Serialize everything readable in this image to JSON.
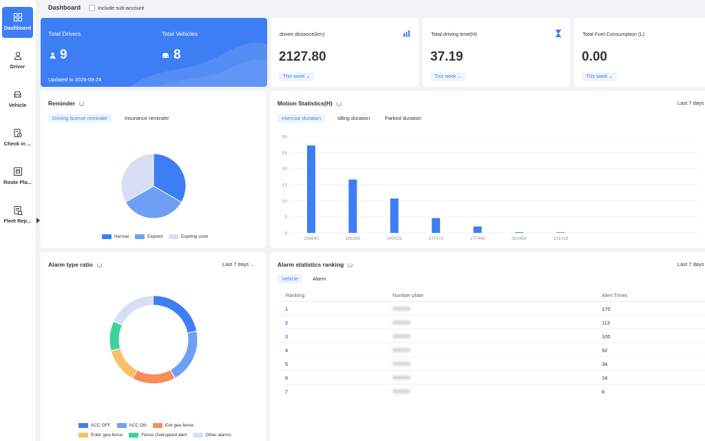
{
  "sidebar": {
    "items": [
      {
        "label": "Dashboard",
        "icon": "dashboard-grid-icon"
      },
      {
        "label": "Driver",
        "icon": "driver-person-icon"
      },
      {
        "label": "Vehicle",
        "icon": "vehicle-car-icon"
      },
      {
        "label": "Check in ...",
        "icon": "check-in-icon"
      },
      {
        "label": "Route Pla...",
        "icon": "route-plan-icon"
      },
      {
        "label": "Fleet Rep...",
        "icon": "fleet-report-icon"
      }
    ]
  },
  "header": {
    "title": "Dashboard",
    "include_sub_account": "Include sub-account"
  },
  "summary": {
    "drivers_label": "Total Drivers",
    "drivers_value": "9",
    "vehicles_label": "Total Vehicles",
    "vehicles_value": "8",
    "updated": "Updated to 2026-09-24"
  },
  "stats": [
    {
      "label": "driven distance(km)",
      "value": "2127.80",
      "period": "This week",
      "icon": "bar-chart-icon"
    },
    {
      "label": "Total driving time(H)",
      "value": "37.19",
      "period": "This week",
      "icon": "hourglass-icon"
    },
    {
      "label": "Total Fuel Consumption (L)",
      "value": "0.00",
      "period": "This week",
      "icon": "fuel-icon"
    }
  ],
  "reminder": {
    "title": "Reminder",
    "tabs": [
      "Driving license reminder",
      "Insurance reminder"
    ],
    "legend": [
      "Normal",
      "Expired",
      "Expiring soon"
    ],
    "slices": [
      {
        "name": "Normal",
        "value": 3,
        "color": "#3d7ef5"
      },
      {
        "name": "Expired",
        "value": 3,
        "color": "#6e9ff5"
      },
      {
        "name": "Expiring soon",
        "value": 3,
        "color": "#d8def3"
      }
    ]
  },
  "motion": {
    "title": "Motion Statistics(H)",
    "range": "Last 7 days",
    "tabs": [
      "exercise duration",
      "Idling duration",
      "Parked duration"
    ]
  },
  "chart_data": {
    "type": "bar",
    "title": "",
    "categories": [
      "256640",
      "185396",
      "245529",
      "277472",
      "277469",
      "303454",
      "131018"
    ],
    "values": [
      27.2,
      16.6,
      10.7,
      4.6,
      2.0,
      0.2,
      0.1
    ],
    "ylim": [
      0,
      30
    ],
    "yticks": [
      0,
      5,
      10,
      15,
      20,
      25,
      30
    ],
    "grid": true,
    "color": "#3d7ef5"
  },
  "alarm_ratio": {
    "title": "Alarm type ratio",
    "range": "Last 7 days",
    "legend_row1": [
      {
        "name": "ACC OFF",
        "color": "#3d7ef5"
      },
      {
        "name": "ACC ON",
        "color": "#6e9ff5"
      },
      {
        "name": "Exit geo-fence",
        "color": "#f78c5c"
      }
    ],
    "legend_row2": [
      {
        "name": "Enter geo-fence",
        "color": "#f8c168"
      },
      {
        "name": "Fence Overspeed alert",
        "color": "#3ed19c"
      },
      {
        "name": "Other alarms",
        "color": "#d8def3"
      }
    ],
    "segments": [
      0.22,
      0.2,
      0.16,
      0.13,
      0.11,
      0.18
    ]
  },
  "ranking": {
    "title": "Alarm statistics ranking",
    "range": "Last 7 days",
    "tabs": [
      "Vehicle",
      "Alarm"
    ],
    "columns": [
      "Ranking",
      "Number plate",
      "Alert Times"
    ],
    "rows": [
      {
        "rank": "1",
        "alerts": "170"
      },
      {
        "rank": "2",
        "alerts": "113"
      },
      {
        "rank": "3",
        "alerts": "100"
      },
      {
        "rank": "4",
        "alerts": "92"
      },
      {
        "rank": "5",
        "alerts": "34"
      },
      {
        "rank": "6",
        "alerts": "14"
      },
      {
        "rank": "7",
        "alerts": "6"
      }
    ]
  }
}
